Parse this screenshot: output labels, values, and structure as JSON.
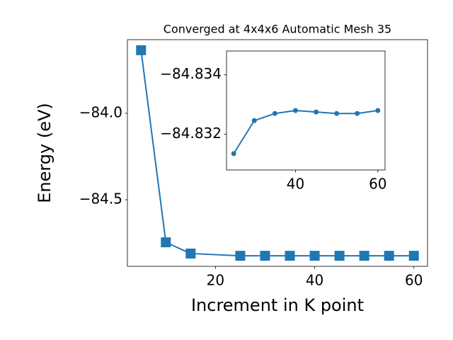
{
  "chart_data": [
    {
      "type": "line",
      "title": "Converged at 4x4x6 Automatic Mesh 35",
      "x_label": "Increment in K point",
      "y_label": "Energy (eV)",
      "x": [
        5,
        10,
        15,
        25,
        30,
        35,
        40,
        45,
        50,
        55,
        60
      ],
      "series": [
        {
          "color": "#1f77b4",
          "marker": "square",
          "values": [
            -83.635,
            -84.746,
            -84.811,
            -84.824,
            -84.824,
            -84.824,
            -84.824,
            -84.824,
            -84.824,
            -84.824,
            -84.824
          ]
        }
      ],
      "xlim": [
        2.25,
        62.75
      ],
      "ylim": [
        -84.885,
        -83.574
      ],
      "xticks": [
        20,
        40,
        60
      ],
      "yticks": [
        {
          "value": -84.0,
          "label": "−84.0"
        },
        {
          "value": -84.5,
          "label": "−84.5"
        }
      ]
    },
    {
      "type": "line",
      "x": [
        25,
        30,
        35,
        40,
        45,
        50,
        55,
        60
      ],
      "series": [
        {
          "color": "#1f77b4",
          "marker": "circle",
          "values": [
            -84.83135,
            -84.83246,
            -84.8327,
            -84.8328,
            -84.83275,
            -84.8327,
            -84.8327,
            -84.8328
          ]
        }
      ],
      "xlim": [
        23.25,
        61.75
      ],
      "ylim": [
        -84.8308,
        -84.8348
      ],
      "xticks": [
        40,
        60
      ],
      "yticks": [
        {
          "value": -84.834,
          "label": "−84.834"
        },
        {
          "value": -84.832,
          "label": "−84.832"
        }
      ]
    }
  ]
}
